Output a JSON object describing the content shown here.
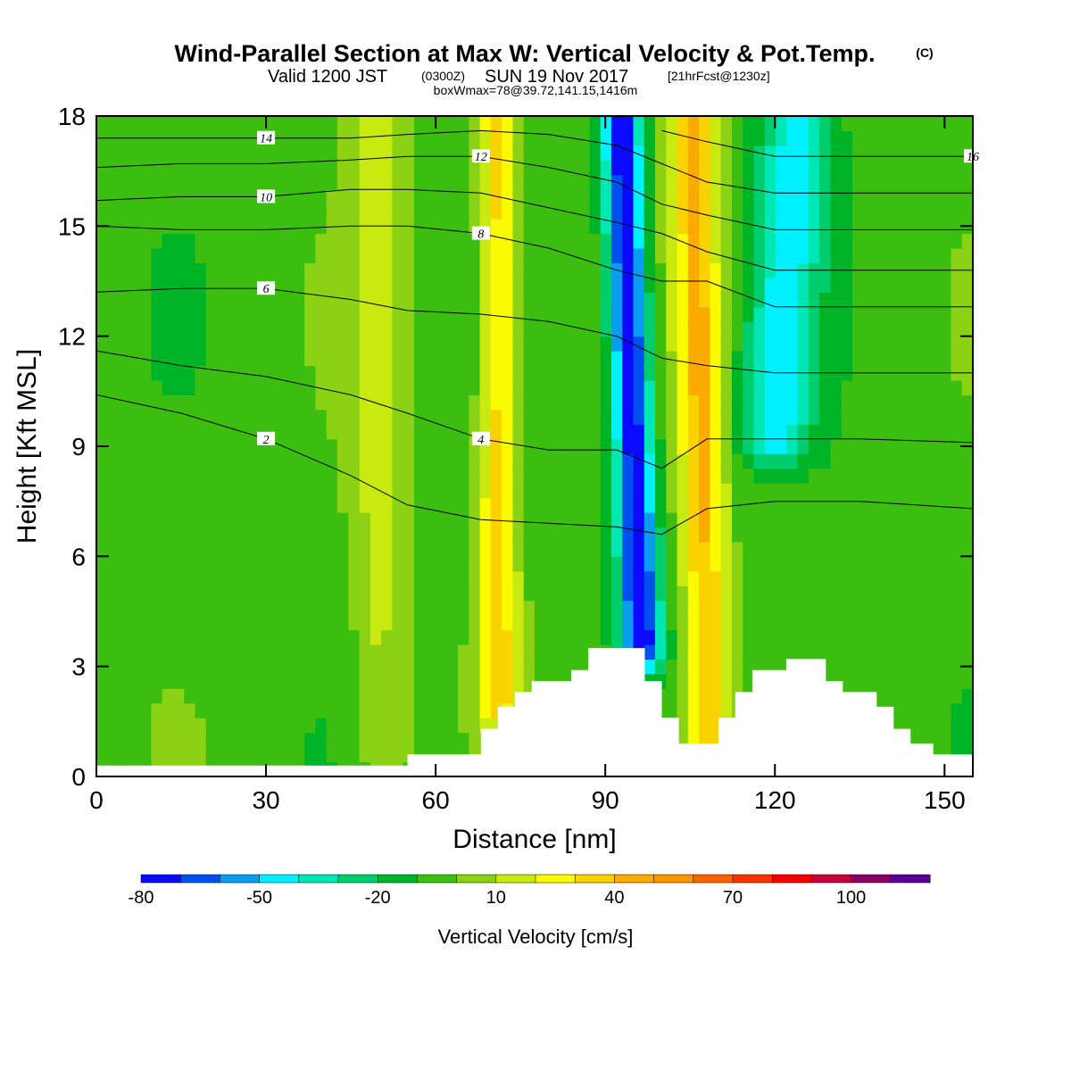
{
  "title": {
    "main": "Wind-Parallel Section at Max W: Vertical Velocity & Pot.Temp.",
    "copyright": "(C)",
    "valid_prefix": "Valid 1200 JST",
    "valid_utc": "(0300Z)",
    "valid_date": "SUN 19 Nov 2017",
    "forecast_info": "[21hrFcst@1230z]",
    "box_info": "boxWmax=78@39.72,141.15,1416m"
  },
  "chart_data": {
    "type": "heatmap",
    "xlabel": "Distance [nm]",
    "ylabel": "Height [Kft MSL]",
    "xlim": [
      0,
      155
    ],
    "ylim": [
      0,
      18
    ],
    "x_ticks": [
      0,
      30,
      60,
      90,
      120,
      150
    ],
    "y_ticks": [
      0,
      3,
      6,
      9,
      12,
      15,
      18
    ],
    "colorbar": {
      "title": "Vertical Velocity [cm/s]",
      "levels": [
        -80,
        -70,
        -60,
        -50,
        -40,
        -30,
        -20,
        -10,
        0,
        10,
        20,
        30,
        40,
        50,
        60,
        70,
        80,
        90,
        100,
        110,
        120
      ],
      "labels": [
        "-80",
        "-50",
        "-20",
        "10",
        "40",
        "70",
        "100"
      ],
      "colors": [
        "#0a0aff",
        "#0050f0",
        "#0a9cf0",
        "#00f0ff",
        "#00e6b4",
        "#00cd6e",
        "#00b428",
        "#3cbe10",
        "#8cd214",
        "#c8ea10",
        "#fafa00",
        "#fad200",
        "#faaa00",
        "#fa9600",
        "#fa6400",
        "#fa3200",
        "#f50000",
        "#c8003c",
        "#8c0064",
        "#5a0096"
      ]
    },
    "terrain": [
      [
        0,
        0.3
      ],
      [
        55,
        0.3
      ],
      [
        55,
        0.6
      ],
      [
        68,
        0.6
      ],
      [
        68,
        1.3
      ],
      [
        71,
        1.3
      ],
      [
        71,
        1.9
      ],
      [
        74,
        1.9
      ],
      [
        74,
        2.3
      ],
      [
        77,
        2.3
      ],
      [
        77,
        2.6
      ],
      [
        84,
        2.6
      ],
      [
        84,
        2.9
      ],
      [
        87,
        2.9
      ],
      [
        87,
        3.5
      ],
      [
        97,
        3.5
      ],
      [
        97,
        2.6
      ],
      [
        100,
        2.6
      ],
      [
        100,
        1.6
      ],
      [
        103,
        1.6
      ],
      [
        103,
        0.9
      ],
      [
        110,
        0.9
      ],
      [
        110,
        1.6
      ],
      [
        113,
        1.6
      ],
      [
        113,
        2.3
      ],
      [
        116,
        2.3
      ],
      [
        116,
        2.9
      ],
      [
        122,
        2.9
      ],
      [
        122,
        3.2
      ],
      [
        129,
        3.2
      ],
      [
        129,
        2.6
      ],
      [
        132,
        2.6
      ],
      [
        132,
        2.3
      ],
      [
        138,
        2.3
      ],
      [
        138,
        1.9
      ],
      [
        141,
        1.9
      ],
      [
        141,
        1.3
      ],
      [
        144,
        1.3
      ],
      [
        144,
        0.9
      ],
      [
        148,
        0.9
      ],
      [
        148,
        0.6
      ],
      [
        155,
        0.6
      ]
    ],
    "features": [
      {
        "kind": "downdraft",
        "x": 95,
        "w": 3.5,
        "ymin": 3.5,
        "ymax": 18,
        "tilt": -0.25,
        "peak": -75
      },
      {
        "kind": "updraft",
        "x": 107,
        "w": 4.0,
        "ymin": 1.0,
        "ymax": 18,
        "tilt": -0.15,
        "peak": 45
      },
      {
        "kind": "updraft",
        "x": 71,
        "w": 3.5,
        "ymin": 2.0,
        "ymax": 18,
        "tilt": 0.0,
        "peak": 40
      },
      {
        "kind": "updraft",
        "x": 50,
        "w": 5.0,
        "ymin": 0.5,
        "ymax": 18,
        "tilt": 0.0,
        "peak": 18
      },
      {
        "kind": "downdraft",
        "x": 120,
        "w": 6.0,
        "ymin": 9.0,
        "ymax": 18,
        "tilt": 0.4,
        "peak": -38
      }
    ],
    "theta_contours": [
      {
        "label": "2",
        "value": 2,
        "points": [
          [
            0,
            10.4
          ],
          [
            15,
            9.9
          ],
          [
            30,
            9.2
          ],
          [
            45,
            8.2
          ],
          [
            55,
            7.4
          ],
          [
            68,
            7.0
          ],
          [
            80,
            6.9
          ],
          [
            92,
            6.8
          ],
          [
            100,
            6.6
          ],
          [
            108,
            7.3
          ],
          [
            120,
            7.5
          ],
          [
            135,
            7.5
          ],
          [
            155,
            7.3
          ]
        ]
      },
      {
        "label": "4",
        "value": 4,
        "points": [
          [
            0,
            11.6
          ],
          [
            15,
            11.2
          ],
          [
            30,
            10.9
          ],
          [
            45,
            10.4
          ],
          [
            55,
            9.9
          ],
          [
            68,
            9.2
          ],
          [
            80,
            8.9
          ],
          [
            92,
            8.9
          ],
          [
            100,
            8.4
          ],
          [
            108,
            9.2
          ],
          [
            120,
            9.2
          ],
          [
            135,
            9.2
          ],
          [
            155,
            9.1
          ]
        ]
      },
      {
        "label": "6",
        "value": 6,
        "points": [
          [
            0,
            13.2
          ],
          [
            15,
            13.3
          ],
          [
            30,
            13.3
          ],
          [
            45,
            13.0
          ],
          [
            55,
            12.7
          ],
          [
            68,
            12.6
          ],
          [
            80,
            12.4
          ],
          [
            92,
            12.0
          ],
          [
            100,
            11.4
          ],
          [
            108,
            11.2
          ],
          [
            120,
            11.0
          ],
          [
            135,
            11.0
          ],
          [
            155,
            11.0
          ]
        ]
      },
      {
        "label": "8",
        "value": 8,
        "points": [
          [
            0,
            15.0
          ],
          [
            15,
            14.9
          ],
          [
            30,
            14.9
          ],
          [
            45,
            15.0
          ],
          [
            55,
            15.0
          ],
          [
            68,
            14.8
          ],
          [
            80,
            14.4
          ],
          [
            92,
            13.8
          ],
          [
            100,
            13.5
          ],
          [
            108,
            13.5
          ],
          [
            120,
            12.8
          ],
          [
            135,
            12.8
          ],
          [
            155,
            12.8
          ]
        ]
      },
      {
        "label": "10",
        "value": 10,
        "points": [
          [
            0,
            15.7
          ],
          [
            15,
            15.8
          ],
          [
            30,
            15.8
          ],
          [
            45,
            16.0
          ],
          [
            55,
            16.0
          ],
          [
            68,
            15.9
          ],
          [
            80,
            15.5
          ],
          [
            92,
            15.1
          ],
          [
            100,
            14.8
          ],
          [
            108,
            14.3
          ],
          [
            120,
            13.8
          ],
          [
            135,
            13.8
          ],
          [
            155,
            13.8
          ]
        ]
      },
      {
        "label": "12",
        "value": 12,
        "points": [
          [
            0,
            16.6
          ],
          [
            15,
            16.7
          ],
          [
            30,
            16.7
          ],
          [
            45,
            16.8
          ],
          [
            55,
            16.9
          ],
          [
            68,
            16.9
          ],
          [
            80,
            16.6
          ],
          [
            92,
            16.2
          ],
          [
            100,
            15.6
          ],
          [
            108,
            15.3
          ],
          [
            120,
            14.9
          ],
          [
            135,
            14.9
          ],
          [
            155,
            14.9
          ]
        ]
      },
      {
        "label": "14",
        "value": 14,
        "points": [
          [
            0,
            17.4
          ],
          [
            15,
            17.4
          ],
          [
            30,
            17.4
          ],
          [
            45,
            17.4
          ],
          [
            55,
            17.5
          ],
          [
            68,
            17.6
          ],
          [
            80,
            17.5
          ],
          [
            92,
            17.2
          ],
          [
            100,
            16.7
          ],
          [
            108,
            16.2
          ],
          [
            120,
            15.9
          ],
          [
            135,
            15.9
          ],
          [
            155,
            15.9
          ]
        ]
      },
      {
        "label": "16",
        "value": 16,
        "points": [
          [
            100,
            17.6
          ],
          [
            108,
            17.3
          ],
          [
            120,
            16.9
          ],
          [
            135,
            16.9
          ],
          [
            155,
            16.9
          ]
        ]
      }
    ]
  }
}
